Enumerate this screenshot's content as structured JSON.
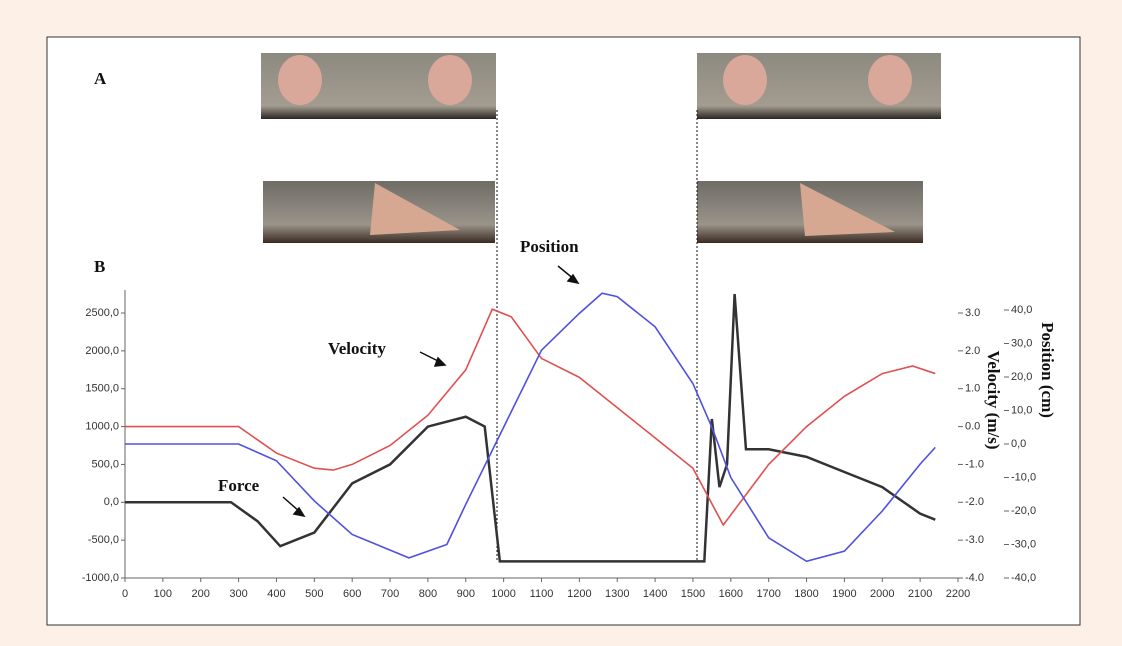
{
  "chart_data": {
    "type": "line",
    "panel_labels": [
      "A",
      "B"
    ],
    "annotations": [
      "Position",
      "Velocity",
      "Force"
    ],
    "y2label": "Velocity (m/s)",
    "y3label": "Position (cm)",
    "xlim": [
      0,
      2200
    ],
    "xticks": [
      0,
      100,
      200,
      300,
      400,
      500,
      600,
      700,
      800,
      900,
      1000,
      1100,
      1200,
      1300,
      1400,
      1500,
      1600,
      1700,
      1800,
      1900,
      2000,
      2100,
      2200
    ],
    "ylim": [
      -1000,
      2500
    ],
    "yticks": [
      {
        "value": -1000,
        "label": "-1000,0"
      },
      {
        "value": -500,
        "label": "-500,0"
      },
      {
        "value": 0,
        "label": "0,0"
      },
      {
        "value": 500,
        "label": "500,0"
      },
      {
        "value": 1000,
        "label": "1000,0"
      },
      {
        "value": 1500,
        "label": "1500,0"
      },
      {
        "value": 2000,
        "label": "2000,0"
      },
      {
        "value": 2500,
        "label": "2500,0"
      }
    ],
    "y2lim": [
      -4,
      3
    ],
    "y2ticks": [
      {
        "value": 3,
        "label": "3.0"
      },
      {
        "value": 2,
        "label": "2.0"
      },
      {
        "value": 1,
        "label": "1.0"
      },
      {
        "value": 0,
        "label": "0.0"
      },
      {
        "value": -1,
        "label": "-1.0"
      },
      {
        "value": -2,
        "label": "-2.0"
      },
      {
        "value": -3,
        "label": "-3.0"
      },
      {
        "value": -4,
        "label": "-4.0"
      }
    ],
    "y3lim": [
      -40,
      40
    ],
    "y3ticks": [
      {
        "value": 40,
        "label": "40,0"
      },
      {
        "value": 30,
        "label": "30,0"
      },
      {
        "value": 20,
        "label": "20,0"
      },
      {
        "value": 10,
        "label": "10,0"
      },
      {
        "value": 0,
        "label": "0,0"
      },
      {
        "value": -10,
        "label": "-10,0"
      },
      {
        "value": -20,
        "label": "-20,0"
      },
      {
        "value": -30,
        "label": "-30,0"
      },
      {
        "value": -40,
        "label": "-40,0"
      }
    ],
    "series": [
      {
        "name": "Force",
        "color": "#333333",
        "axis": "y",
        "x": [
          0,
          280,
          350,
          410,
          500,
          600,
          700,
          800,
          900,
          950,
          990,
          1530,
          1550,
          1570,
          1590,
          1610,
          1640,
          1700,
          1800,
          1900,
          2000,
          2100,
          2140
        ],
        "values": [
          0,
          0,
          -250,
          -580,
          -400,
          250,
          500,
          1000,
          1130,
          1000,
          -780,
          -780,
          1100,
          200,
          500,
          2750,
          700,
          700,
          600,
          400,
          200,
          -150,
          -230
        ]
      },
      {
        "name": "Velocity",
        "color": "#e05050",
        "axis": "y2",
        "x": [
          0,
          300,
          400,
          500,
          550,
          600,
          700,
          800,
          900,
          970,
          1020,
          1100,
          1200,
          1300,
          1400,
          1500,
          1580,
          1700,
          1800,
          1900,
          2000,
          2080,
          2140
        ],
        "values": [
          0,
          0,
          -0.7,
          -1.1,
          -1.15,
          -1.0,
          -0.5,
          0.3,
          1.5,
          3.1,
          2.9,
          1.8,
          1.3,
          0.5,
          -0.3,
          -1.1,
          -2.6,
          -1.0,
          0,
          0.8,
          1.4,
          1.6,
          1.4
        ]
      },
      {
        "name": "Position",
        "color": "#5050e0",
        "axis": "y3",
        "x": [
          0,
          300,
          400,
          500,
          600,
          750,
          850,
          900,
          1000,
          1100,
          1200,
          1260,
          1300,
          1400,
          1500,
          1550,
          1600,
          1700,
          1800,
          1900,
          2000,
          2100,
          2140
        ],
        "values": [
          0,
          0,
          -5,
          -17,
          -27,
          -34,
          -30,
          -18,
          5,
          28,
          39,
          45,
          44,
          35,
          18,
          5,
          -10,
          -28,
          -35,
          -32,
          -20,
          -6,
          -1
        ]
      }
    ]
  }
}
